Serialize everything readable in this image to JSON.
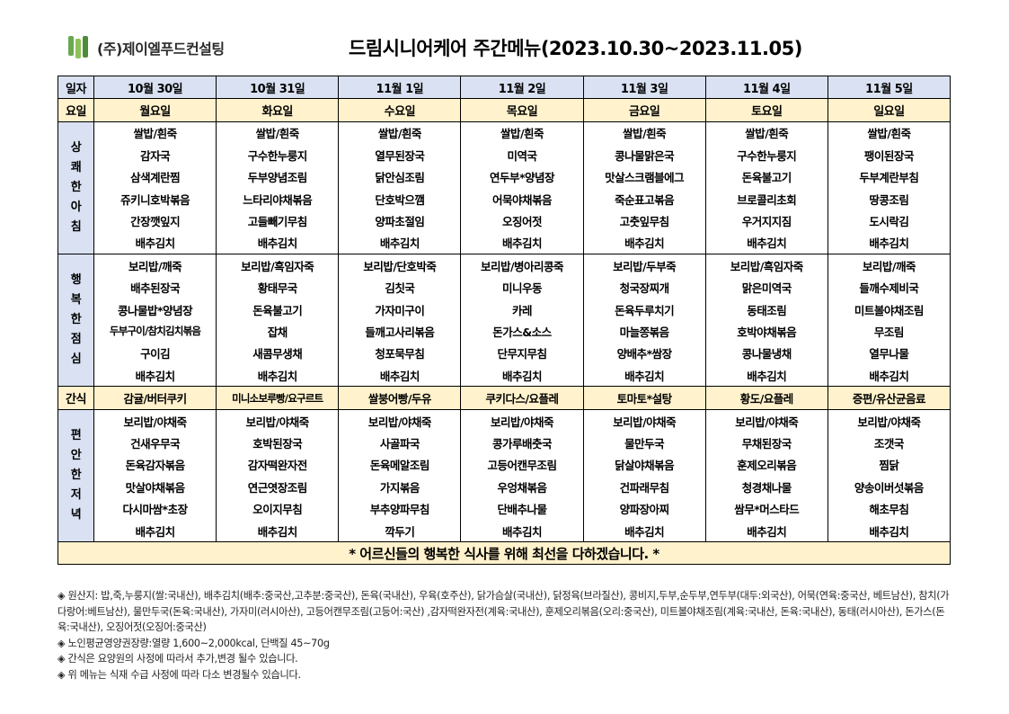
{
  "company": "(주)제이엘푸드컨설팅",
  "title": "드림시니어케어 주간메뉴(2023.10.30~2023.11.05)",
  "label_date": "일자",
  "label_dow": "요일",
  "label_snack": "간식",
  "dates": [
    "10월 30일",
    "10월 31일",
    "11월 1일",
    "11월 2일",
    "11월 3일",
    "11월 4일",
    "11월 5일"
  ],
  "dows": [
    "월요일",
    "화요일",
    "수요일",
    "목요일",
    "금요일",
    "토요일",
    "일요일"
  ],
  "meals": [
    {
      "label": "상쾌한아침",
      "rows": [
        [
          "쌀밥/흰죽",
          "쌀밥/흰죽",
          "쌀밥/흰죽",
          "쌀밥/흰죽",
          "쌀밥/흰죽",
          "쌀밥/흰죽",
          "쌀밥/흰죽"
        ],
        [
          "감자국",
          "구수한누룽지",
          "열무된장국",
          "미역국",
          "콩나물맑은국",
          "구수한누룽지",
          "팽이된장국"
        ],
        [
          "삼색계란찜",
          "두부양념조림",
          "닭안심조림",
          "연두부*양념장",
          "맛살스크램블에그",
          "돈육불고기",
          "두부계란부침"
        ],
        [
          "쥬키니호박볶음",
          "느타리야채볶음",
          "단호박으깸",
          "어묵야채볶음",
          "죽순표고볶음",
          "브로콜리초회",
          "땅콩조림"
        ],
        [
          "간장깻잎지",
          "고들빼기무침",
          "양파초절임",
          "오징어젓",
          "고춧잎무침",
          "우거지지짐",
          "도시락김"
        ],
        [
          "배추김치",
          "배추김치",
          "배추김치",
          "배추김치",
          "배추김치",
          "배추김치",
          "배추김치"
        ]
      ]
    },
    {
      "label": "행복한점심",
      "rows": [
        [
          "보리밥/깨죽",
          "보리밥/흑임자죽",
          "보리밥/단호박죽",
          "보리밥/병아리콩죽",
          "보리밥/두부죽",
          "보리밥/흑임자죽",
          "보리밥/깨죽"
        ],
        [
          "배추된장국",
          "황태무국",
          "김칫국",
          "미니우동",
          "청국장찌개",
          "맑은미역국",
          "들깨수제비국"
        ],
        [
          "콩나물밥*양념장",
          "돈육불고기",
          "가자미구이",
          "카레",
          "돈육두루치기",
          "동태조림",
          "미트볼야채조림"
        ],
        [
          "두부구이/참치김치볶음",
          "잡채",
          "들깨고사리볶음",
          "돈가스&소스",
          "마늘쫑볶음",
          "호박야채볶음",
          "무조림"
        ],
        [
          "구이김",
          "새콤무생채",
          "청포묵무침",
          "단무지무침",
          "양배추*쌈장",
          "콩나물냉채",
          "열무나물"
        ],
        [
          "배추김치",
          "배추김치",
          "배추김치",
          "배추김치",
          "배추김치",
          "배추김치",
          "배추김치"
        ]
      ]
    },
    {
      "label": "편안한저녁",
      "rows": [
        [
          "보리밥/야채죽",
          "보리밥/야채죽",
          "보리밥/야채죽",
          "보리밥/야채죽",
          "보리밥/야채죽",
          "보리밥/야채죽",
          "보리밥/야채죽"
        ],
        [
          "건새우무국",
          "호박된장국",
          "사골파국",
          "콩가루배춧국",
          "물만두국",
          "무채된장국",
          "조갯국"
        ],
        [
          "돈육감자볶음",
          "감자떡완자전",
          "돈육메알조림",
          "고등어캔무조림",
          "닭살야채볶음",
          "훈제오리볶음",
          "찜닭"
        ],
        [
          "맛살야채볶음",
          "연근엿장조림",
          "가지볶음",
          "우엉채볶음",
          "건파래무침",
          "청경채나물",
          "양송이버섯볶음"
        ],
        [
          "다시마쌈*초장",
          "오이지무침",
          "부추양파무침",
          "단배추나물",
          "양파장아찌",
          "쌈무*머스타드",
          "해초무침"
        ],
        [
          "배추김치",
          "배추김치",
          "깍두기",
          "배추김치",
          "배추김치",
          "배추김치",
          "배추김치"
        ]
      ]
    }
  ],
  "snacks": [
    "감귤/버터쿠키",
    "미니소보루빵/요구르트",
    "쌀붕어빵/두유",
    "쿠키다스/요플레",
    "토마토*설탕",
    "황도/요플레",
    "증편/유산균음료"
  ],
  "footer": "* 어르신들의 행복한 식사를 위해 최선을 다하겠습니다. *",
  "notes": [
    "◈ 원산지: 밥,죽,누룽지(쌀:국내산), 배추김치(배추:중국산,고추분:중국산), 돈육(국내산), 우육(호주산), 닭가슴살(국내산), 닭정육(브라질산), 콩비지,두부,순두부,연두부(대두:외국산), 어묵(연육:중국산, 베트남산), 참치(가다랑어:베트남산), 물만두국(돈육:국내산), 가자미(러시아산), 고등어캔무조림(고등어:국산) ,감자떡완자전(계육:국내산), 훈제오리볶음(오리:중국산), 미트볼야채조림(계육:국내산, 돈육:국내산), 동태(러시아산), 돈가스(돈육:국내산), 오징어젓(오징어:중국산)",
    "◈ 노인평균영양권장량:열량 1,600~2,000kcal, 단백질 45~70g",
    "◈ 간식은 요양원의 사정에 따라서 추가,변경 될수 있습니다.",
    "◈ 위 메뉴는 식재 수급 사정에 따라 다소 변경될수 있습니다."
  ]
}
